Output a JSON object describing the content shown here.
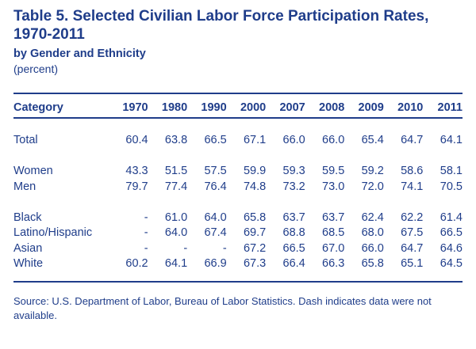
{
  "title": "Table 5.  Selected Civilian Labor Force Participation Rates, 1970-2011",
  "subtitle": "by Gender and Ethnicity",
  "unit": "(percent)",
  "table": {
    "header": [
      "Category",
      "1970",
      "1980",
      "1990",
      "2000",
      "2007",
      "2008",
      "2009",
      "2010",
      "2011"
    ],
    "groups": [
      [
        {
          "label": "Total",
          "values": [
            "60.4",
            "63.8",
            "66.5",
            "67.1",
            "66.0",
            "66.0",
            "65.4",
            "64.7",
            "64.1"
          ]
        }
      ],
      [
        {
          "label": "Women",
          "values": [
            "43.3",
            "51.5",
            "57.5",
            "59.9",
            "59.3",
            "59.5",
            "59.2",
            "58.6",
            "58.1"
          ]
        },
        {
          "label": "Men",
          "values": [
            "79.7",
            "77.4",
            "76.4",
            "74.8",
            "73.2",
            "73.0",
            "72.0",
            "74.1",
            "70.5"
          ]
        }
      ],
      [
        {
          "label": "Black",
          "values": [
            "-",
            "61.0",
            "64.0",
            "65.8",
            "63.7",
            "63.7",
            "62.4",
            "62.2",
            "61.4"
          ]
        },
        {
          "label": "Latino/Hispanic",
          "values": [
            "-",
            "64.0",
            "67.4",
            "69.7",
            "68.8",
            "68.5",
            "68.0",
            "67.5",
            "66.5"
          ]
        },
        {
          "label": "Asian",
          "values": [
            "-",
            "-",
            "-",
            "67.2",
            "66.5",
            "67.0",
            "66.0",
            "64.7",
            "64.6"
          ]
        },
        {
          "label": "White",
          "values": [
            "60.2",
            "64.1",
            "66.9",
            "67.3",
            "66.4",
            "66.3",
            "65.8",
            "65.1",
            "64.5"
          ]
        }
      ]
    ]
  },
  "source": "Source:  U.S. Department of Labor, Bureau of Labor Statistics. Dash indicates data were not available."
}
